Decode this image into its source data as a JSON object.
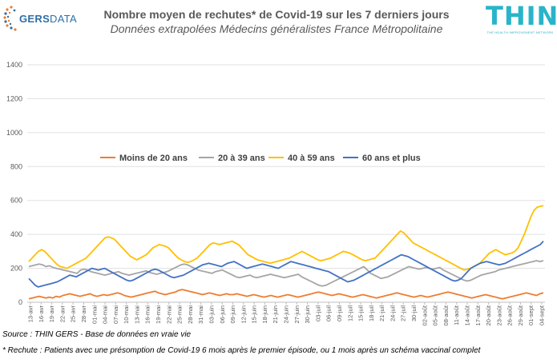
{
  "header": {
    "title": "Nombre moyen de rechutes* de Covid-19 sur les 7 derniers jours",
    "subtitle": "Données extrapolées Médecins généralistes France Métropolitaine"
  },
  "logos": {
    "gers_text_bold": "GERS",
    "gers_text_regular": "DATA",
    "thin_word": "THIN",
    "thin_tagline": "THE HEALTH IMPROVEMENT NETWORK",
    "gers_color": "#2e6fa6",
    "thin_color": "#29b4c9"
  },
  "footer": {
    "source": "Source : THIN GERS - Base de données en vraie vie",
    "note": "* Rechute : Patients avec une présomption de Covid-19 6 mois après le premier épisode, ou 1 mois après un schéma vaccinal complet"
  },
  "chart_data": {
    "type": "line",
    "title": "Nombre moyen de rechutes* de Covid-19 sur les 7 derniers jours",
    "subtitle": "Données extrapolées Médecins généralistes France Métropolitaine",
    "xlabel": "",
    "ylabel": "",
    "ylim": [
      0,
      1400
    ],
    "yticks": [
      0,
      200,
      400,
      600,
      800,
      1000,
      1200,
      1400
    ],
    "grid": true,
    "legend_position": "middle",
    "x_tick_labels": [
      "13-avr",
      "16-avr",
      "19-avr",
      "22-avr",
      "25-avr",
      "28-avr",
      "01-mai",
      "04-mai",
      "07-mai",
      "10-mai",
      "13-mai",
      "16-mai",
      "19-mai",
      "22-mai",
      "25-mai",
      "28-mai",
      "31-mai",
      "03-juin",
      "06-juin",
      "09-juin",
      "12-juin",
      "15-juin",
      "18-juin",
      "21-juin",
      "24-juin",
      "27-juin",
      "30-juin",
      "03-juil",
      "06-juil",
      "09-juil",
      "12-juil",
      "15-juil",
      "18-juil",
      "21-juil",
      "24-juil",
      "27-juil",
      "30-juil",
      "02-août",
      "05-août",
      "08-août",
      "11-août",
      "14-août",
      "17-août",
      "20-août",
      "23-août",
      "26-août",
      "29-août",
      "01-sept",
      "04-sept"
    ],
    "series": [
      {
        "name": "Moins de 20 ans",
        "color": "#ed7d31",
        "values": [
          20,
          25,
          30,
          35,
          30,
          25,
          30,
          25,
          35,
          30,
          40,
          45,
          50,
          45,
          40,
          35,
          40,
          45,
          50,
          40,
          35,
          40,
          45,
          40,
          45,
          50,
          55,
          50,
          40,
          35,
          30,
          35,
          40,
          45,
          50,
          55,
          60,
          65,
          55,
          50,
          45,
          50,
          55,
          60,
          70,
          75,
          70,
          65,
          60,
          55,
          50,
          45,
          50,
          55,
          50,
          45,
          40,
          45,
          50,
          45,
          45,
          50,
          45,
          40,
          35,
          40,
          45,
          40,
          35,
          30,
          35,
          40,
          35,
          30,
          35,
          40,
          45,
          40,
          35,
          30,
          35,
          40,
          45,
          50,
          55,
          60,
          55,
          50,
          45,
          40,
          45,
          50,
          45,
          40,
          35,
          30,
          35,
          40,
          45,
          40,
          35,
          30,
          25,
          30,
          35,
          40,
          45,
          50,
          55,
          50,
          45,
          40,
          35,
          30,
          35,
          40,
          35,
          30,
          35,
          40,
          45,
          50,
          55,
          60,
          55,
          50,
          45,
          40,
          35,
          30,
          25,
          30,
          35,
          40,
          45,
          40,
          35,
          30,
          25,
          20,
          25,
          30,
          35,
          40,
          45,
          50,
          55,
          50,
          45,
          40,
          50,
          55
        ]
      },
      {
        "name": "20 à 39 ans",
        "color": "#a5a5a5",
        "values": [
          210,
          215,
          220,
          225,
          220,
          210,
          215,
          205,
          200,
          195,
          190,
          185,
          180,
          175,
          170,
          190,
          195,
          190,
          180,
          175,
          170,
          165,
          160,
          165,
          170,
          175,
          180,
          170,
          165,
          160,
          165,
          170,
          175,
          180,
          185,
          175,
          170,
          165,
          170,
          175,
          180,
          190,
          200,
          210,
          220,
          225,
          220,
          210,
          200,
          190,
          185,
          180,
          175,
          170,
          180,
          185,
          190,
          180,
          170,
          160,
          150,
          145,
          150,
          155,
          160,
          150,
          145,
          150,
          155,
          160,
          165,
          160,
          155,
          150,
          145,
          150,
          155,
          160,
          165,
          150,
          140,
          130,
          120,
          110,
          100,
          95,
          100,
          110,
          120,
          130,
          140,
          150,
          160,
          170,
          180,
          190,
          200,
          210,
          190,
          170,
          160,
          150,
          140,
          145,
          150,
          160,
          170,
          180,
          190,
          200,
          210,
          205,
          200,
          195,
          200,
          205,
          200,
          195,
          200,
          205,
          190,
          180,
          170,
          160,
          150,
          140,
          130,
          125,
          130,
          140,
          150,
          160,
          165,
          170,
          175,
          180,
          190,
          195,
          200,
          205,
          210,
          215,
          220,
          225,
          230,
          235,
          240,
          245,
          240,
          245
        ]
      },
      {
        "name": "40 à 59 ans",
        "color": "#ffc000",
        "values": [
          240,
          260,
          280,
          300,
          310,
          300,
          280,
          260,
          240,
          220,
          210,
          205,
          200,
          210,
          220,
          230,
          240,
          250,
          260,
          280,
          300,
          320,
          340,
          360,
          380,
          385,
          380,
          370,
          350,
          330,
          310,
          290,
          270,
          260,
          250,
          260,
          270,
          280,
          300,
          320,
          330,
          340,
          335,
          330,
          320,
          300,
          280,
          260,
          250,
          240,
          235,
          240,
          250,
          260,
          280,
          300,
          320,
          340,
          350,
          345,
          340,
          345,
          350,
          355,
          360,
          350,
          340,
          320,
          300,
          280,
          270,
          260,
          250,
          245,
          240,
          235,
          230,
          235,
          240,
          245,
          250,
          255,
          260,
          270,
          280,
          290,
          300,
          290,
          280,
          270,
          260,
          250,
          245,
          250,
          255,
          260,
          270,
          280,
          290,
          300,
          295,
          290,
          280,
          270,
          260,
          250,
          245,
          250,
          255,
          260,
          280,
          300,
          320,
          340,
          360,
          380,
          400,
          420,
          410,
          390,
          370,
          350,
          340,
          330,
          320,
          310,
          300,
          290,
          280,
          270,
          260,
          250,
          240,
          230,
          220,
          210,
          200,
          190,
          195,
          200,
          210,
          220,
          230,
          250,
          270,
          290,
          300,
          310,
          300,
          290,
          280,
          285,
          290,
          300,
          320,
          360,
          400,
          450,
          500,
          540,
          560,
          565,
          570
        ]
      },
      {
        "name": "60 ans et plus",
        "color": "#4472c4",
        "values": [
          140,
          120,
          100,
          90,
          95,
          100,
          105,
          110,
          115,
          120,
          130,
          140,
          150,
          160,
          155,
          150,
          160,
          170,
          180,
          190,
          200,
          195,
          190,
          195,
          200,
          190,
          180,
          170,
          160,
          150,
          140,
          130,
          125,
          130,
          140,
          150,
          160,
          170,
          180,
          190,
          195,
          190,
          180,
          170,
          160,
          150,
          145,
          150,
          155,
          160,
          170,
          180,
          190,
          200,
          210,
          220,
          225,
          230,
          225,
          220,
          215,
          210,
          220,
          230,
          235,
          240,
          230,
          220,
          210,
          200,
          205,
          210,
          215,
          220,
          225,
          220,
          215,
          210,
          205,
          200,
          210,
          220,
          230,
          240,
          235,
          230,
          225,
          220,
          215,
          210,
          205,
          200,
          195,
          190,
          185,
          180,
          170,
          160,
          150,
          140,
          130,
          120,
          125,
          130,
          140,
          150,
          160,
          170,
          180,
          190,
          200,
          210,
          220,
          230,
          240,
          250,
          260,
          270,
          280,
          275,
          270,
          260,
          250,
          240,
          230,
          220,
          210,
          200,
          190,
          180,
          170,
          160,
          150,
          140,
          130,
          125,
          130,
          140,
          160,
          180,
          200,
          210,
          220,
          230,
          235,
          240,
          235,
          230,
          225,
          220,
          225,
          230,
          240,
          250,
          260,
          270,
          280,
          290,
          300,
          310,
          320,
          330,
          340,
          360
        ]
      }
    ]
  }
}
